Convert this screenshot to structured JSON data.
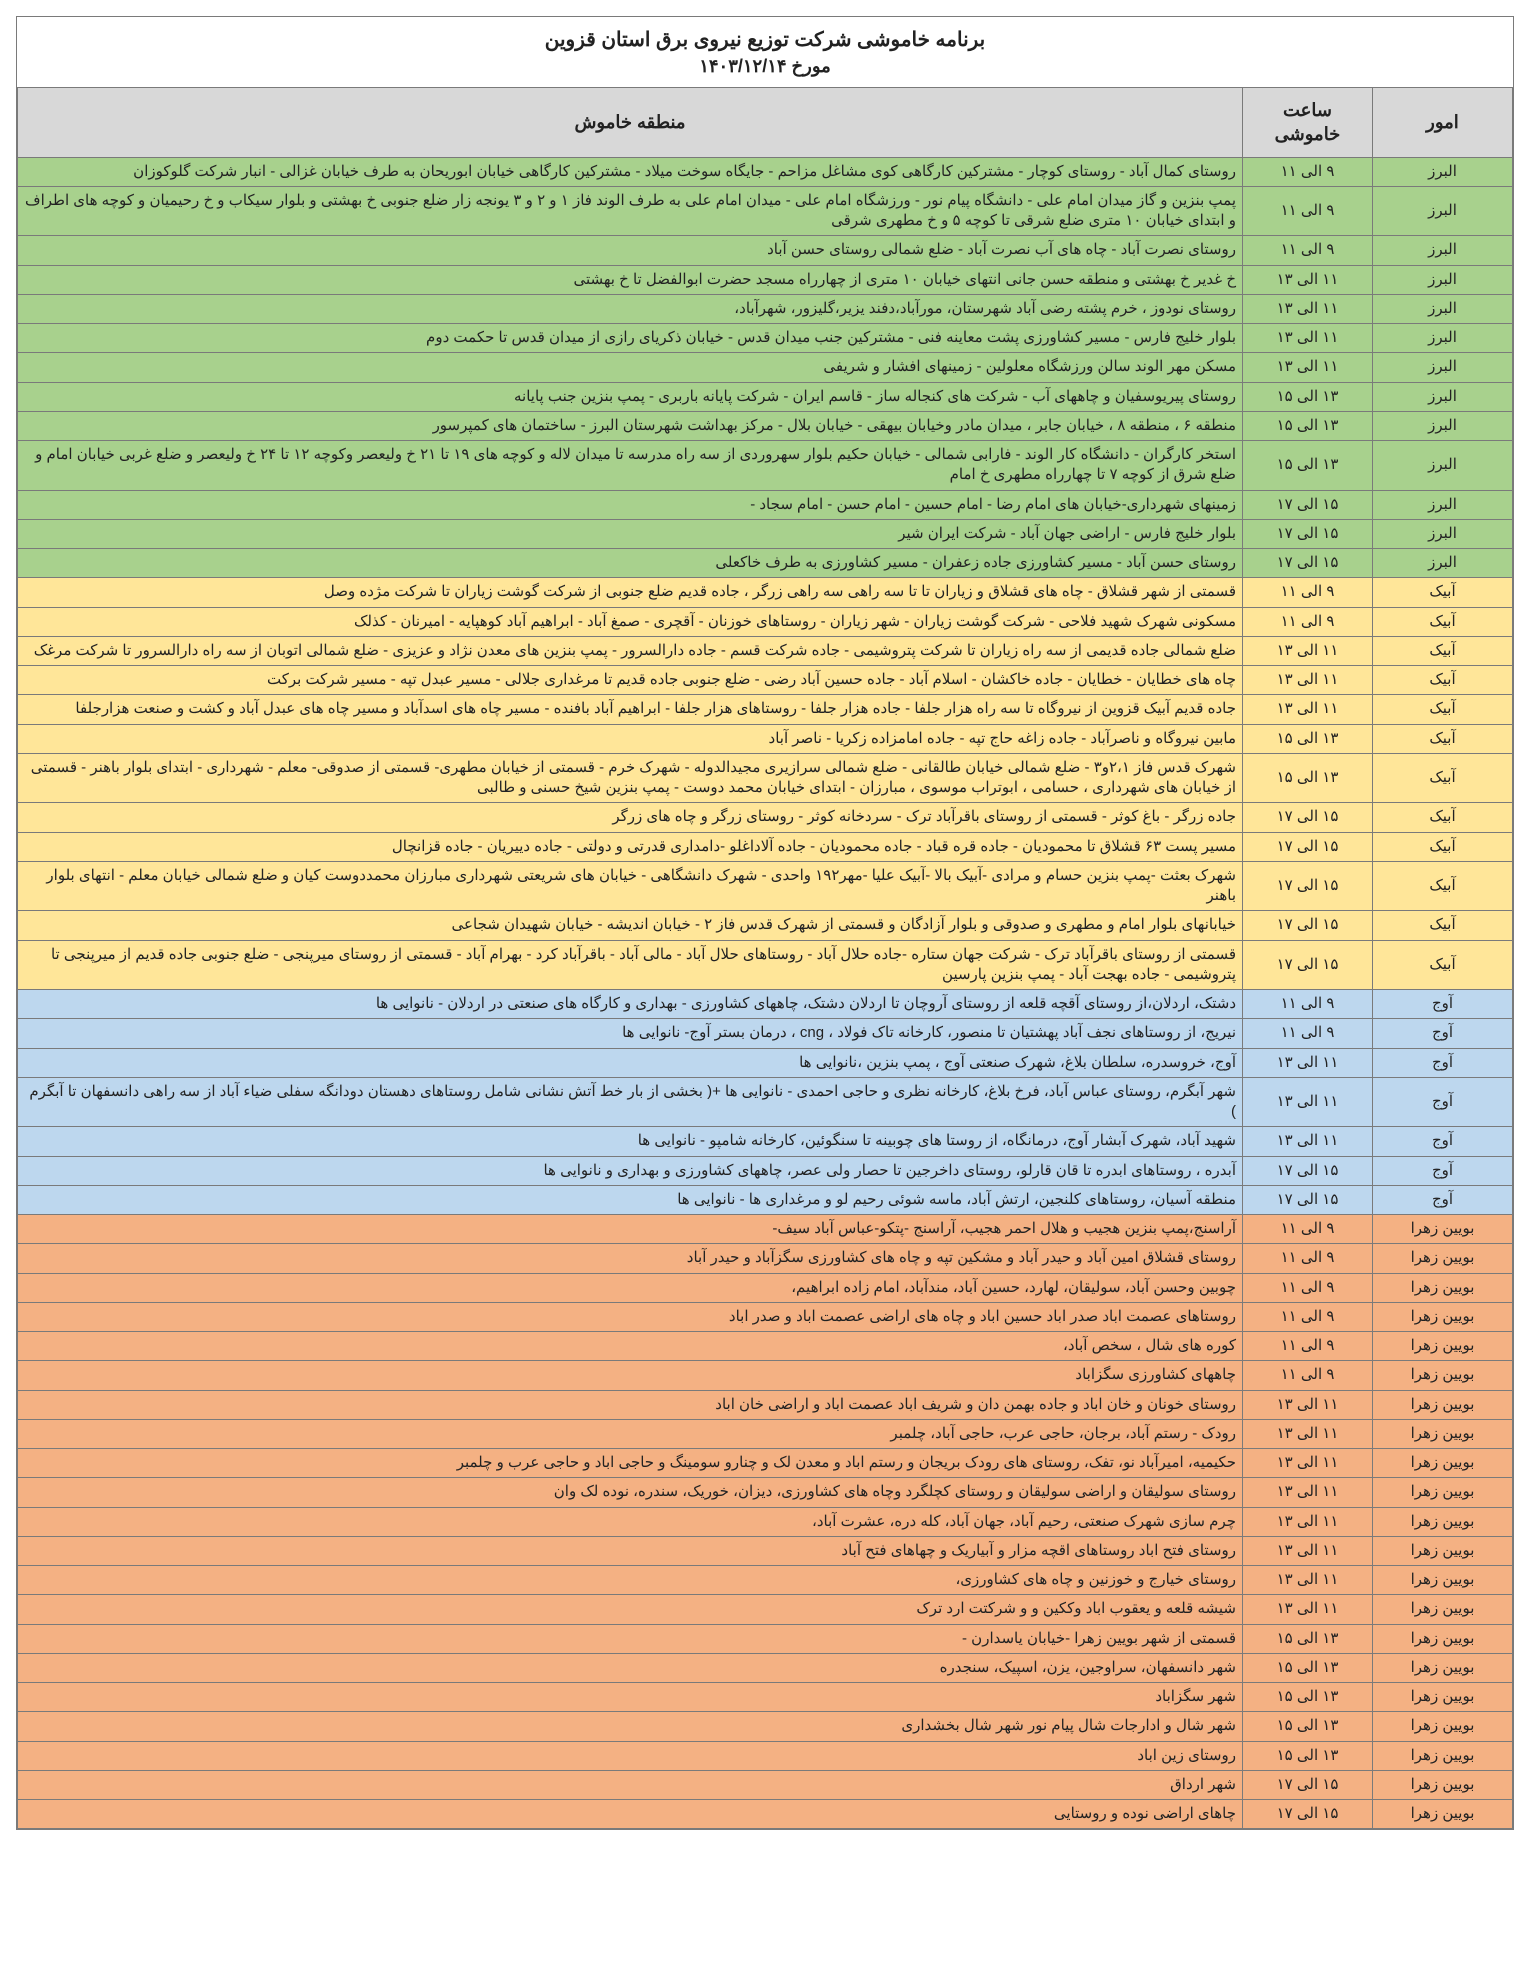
{
  "title": "برنامه خاموشی شرکت توزیع نیروی برق استان قزوین",
  "date_line": "مورخ ۱۴۰۳/۱۲/۱۴",
  "headers": {
    "region": "امور",
    "hours": "ساعت خاموشی",
    "area": "منطقه خاموش"
  },
  "colors": {
    "header_bg": "#d8d8d8",
    "groups": {
      "alborz": "#a8d18d",
      "abyek": "#ffe699",
      "avaj": "#bdd7ee",
      "buin": "#f4b183"
    }
  },
  "rows": [
    {
      "g": "alborz",
      "region": "البرز",
      "hours": "۹ الی ۱۱",
      "area": "روستای کمال آباد - روستای کوچار - مشترکین کارگاهی کوی مشاغل مزاحم - جایگاه سوخت میلاد - مشترکین کارگاهی خیابان ابوریحان به طرف خیابان غزالی - انبار شرکت گلوکوزان"
    },
    {
      "g": "alborz",
      "region": "البرز",
      "hours": "۹ الی ۱۱",
      "area": "پمپ بنزین و گاز میدان امام علی - دانشگاه پیام نور - ورزشگاه امام علی - میدان امام علی به طرف الوند فاز ۱ و ۲ و ۳ یونجه زار ضلع جنوبی خ بهشتی و بلوار سیکاب و خ رحیمیان و کوچه های اطراف و ابتدای خیابان ۱۰ متری ضلع شرقی تا کوچه ۵ و خ مطهری شرقی"
    },
    {
      "g": "alborz",
      "region": "البرز",
      "hours": "۹ الی ۱۱",
      "area": "روستای نصرت آباد - چاه های آب نصرت آباد - ضلع شمالی روستای حسن آباد"
    },
    {
      "g": "alborz",
      "region": "البرز",
      "hours": "۱۱ الی ۱۳",
      "area": "خ غدیر خ بهشتی و منطقه حسن جانی انتهای خیابان ۱۰ متری از چهارراه مسجد حضرت ابوالفضل تا خ بهشتی"
    },
    {
      "g": "alborz",
      "region": "البرز",
      "hours": "۱۱ الی ۱۳",
      "area": "روستای نودوز ، خرم پشته رضی آباد شهرستان، مورآباد،دفند یزیر،گلیزور، شهرآباد،"
    },
    {
      "g": "alborz",
      "region": "البرز",
      "hours": "۱۱ الی ۱۳",
      "area": "بلوار خلیج فارس - مسیر کشاورزی پشت معاینه فنی - مشترکین جنب میدان قدس -  خیابان ذکریای رازی از میدان قدس تا حکمت دوم"
    },
    {
      "g": "alborz",
      "region": "البرز",
      "hours": "۱۱ الی ۱۳",
      "area": "مسکن مهر الوند سالن ورزشگاه معلولین -  زمینهای افشار و شریفی"
    },
    {
      "g": "alborz",
      "region": "البرز",
      "hours": "۱۳ الی ۱۵",
      "area": "روستای پیریوسفیان و چاههای آب - شرکت های کنجاله ساز - قاسم ایران - شرکت پایانه باربری - پمپ بنزین جنب پایانه"
    },
    {
      "g": "alborz",
      "region": "البرز",
      "hours": "۱۳ الی ۱۵",
      "area": "منطقه ۶ ، منطقه ۸ ، خیابان جابر ، میدان مادر وخیابان بیهقی - خیابان بلال - مرکز بهداشت شهرستان البرز - ساختمان های کمپرسور"
    },
    {
      "g": "alborz",
      "region": "البرز",
      "hours": "۱۳ الی ۱۵",
      "area": "استخر کارگران - دانشگاه کار الوند - فارابی شمالی -  خیابان حکیم بلوار سهروردی از سه راه مدرسه تا میدان لاله و کوچه های ۱۹ تا ۲۱ خ ولیعصر وکوچه ۱۲ تا ۲۴ خ ولیعصر و ضلع غربی خیابان امام و ضلع شرق از کوچه ۷ تا چهارراه مطهری خ امام"
    },
    {
      "g": "alborz",
      "region": "البرز",
      "hours": "۱۵ الی ۱۷",
      "area": "زمینهای شهرداری-خیابان های امام رضا - امام حسین - امام حسن - امام سجاد -"
    },
    {
      "g": "alborz",
      "region": "البرز",
      "hours": "۱۵ الی ۱۷",
      "area": "بلوار خلیج فارس - اراضی جهان آباد -  شرکت ایران شیر"
    },
    {
      "g": "alborz",
      "region": "البرز",
      "hours": "۱۵ الی ۱۷",
      "area": "روستای حسن آباد -  مسیر کشاورزی جاده زعفران -  مسیر کشاورزی به طرف خاکعلی"
    },
    {
      "g": "abyek",
      "region": "آبیک",
      "hours": "۹ الی ۱۱",
      "area": "قسمتی از شهر قشلاق - چاه های قشلاق و زیاران تا تا سه راهی سه راهی زرگر ، جاده قدیم ضلع جنوبی از شرکت گوشت زیاران تا شرکت مژده وصل"
    },
    {
      "g": "abyek",
      "region": "آبیک",
      "hours": "۹ الی ۱۱",
      "area": "مسکونی شهرک شهید فلاحی - شرکت گوشت زیاران - شهر زیاران - روستاهای خوزنان - آقچری - صمغ آباد - ابراهیم آباد کوهپایه - امیرنان  - کذلک"
    },
    {
      "g": "abyek",
      "region": "آبیک",
      "hours": "۱۱ الی ۱۳",
      "area": "ضلع شمالی جاده قدیمی از سه راه زیاران تا شرکت پتروشیمی - جاده شرکت قسم - جاده دارالسرور - پمپ بنزین های معدن نژاد و عزیزی - ضلع شمالی اتوبان از سه راه دارالسرور تا شرکت مرغک"
    },
    {
      "g": "abyek",
      "region": "آبیک",
      "hours": "۱۱ الی ۱۳",
      "area": "چاه های خطایان - خطایان - جاده خاکشان - اسلام آباد - جاده حسین آباد رضی - ضلع جنوبی جاده قدیم تا مرغداری جلالی - مسیر عبدل تپه - مسیر شرکت برکت"
    },
    {
      "g": "abyek",
      "region": "آبیک",
      "hours": "۱۱ الی ۱۳",
      "area": "جاده قدیم آبیک قزوین از نیروگاه تا سه راه هزار جلفا - جاده هزار جلفا - روستاهای هزار جلفا - ابراهیم آباد بافنده - مسیر چاه های اسدآباد و مسیر چاه های عبدل آباد و کشت و صنعت هزارجلفا"
    },
    {
      "g": "abyek",
      "region": "آبیک",
      "hours": "۱۳ الی ۱۵",
      "area": "مابین نیروگاه و ناصرآباد - جاده زاغه حاج تپه - جاده امامزاده زکریا - ناصر آباد"
    },
    {
      "g": "abyek",
      "region": "آبیک",
      "hours": "۱۳ الی ۱۵",
      "area": "شهرک قدس فاز ۲،۱و۳ - ضلع شمالی خیابان طالقانی - ضلع شمالی سرازیری مجیدالدوله - شهرک خرم - قسمتی از خیابان مطهری- قسمتی از صدوقی- معلم - شهرداری - ابتدای بلوار باهنر - قسمتی از خیابان های شهرداری ، حسامی ، ابوتراب موسوی ، مبارزان - ابتدای خیابان محمد دوست - پمپ بنزین شیخ حسنی و طالبی"
    },
    {
      "g": "abyek",
      "region": "آبیک",
      "hours": "۱۵ الی ۱۷",
      "area": "جاده زرگر - باغ کوثر - قسمتی از روستای باقرآباد ترک - سردخانه کوثر -  روستای زرگر و چاه های زرگر"
    },
    {
      "g": "abyek",
      "region": "آبیک",
      "hours": "۱۵ الی ۱۷",
      "area": "مسیر پست ۶۳ قشلاق تا محمودیان - جاده قره قباد - جاده محمودیان - جاده آلاداغلو -دامداری قدرتی و دولتی - جاده دییریان - جاده قزانچال"
    },
    {
      "g": "abyek",
      "region": "آبیک",
      "hours": "۱۵ الی ۱۷",
      "area": "شهرک بعثت -پمپ بنزین حسام و مرادی -آبیک بالا -آبیک علیا -مهر۱۹۲ واحدی - شهرک دانشگاهی -  خیابان های شریعتی شهرداری مبارزان محمددوست کیان و ضلع شمالی خیابان معلم -  انتهای بلوار باهنر"
    },
    {
      "g": "abyek",
      "region": "آبیک",
      "hours": "۱۵ الی ۱۷",
      "area": "خیابانهای بلوار امام و مطهری و صدوقی و بلوار آزادگان و قسمتی از شهرک قدس فاز ۲ - خیابان اندیشه - خیابان شهیدان شجاعی"
    },
    {
      "g": "abyek",
      "region": "آبیک",
      "hours": "۱۵ الی ۱۷",
      "area": "قسمتی از روستای باقرآباد ترک - شرکت جهان ستاره -جاده حلال آباد - روستاهای حلال آباد - مالی آباد - باقرآباد کرد - بهرام آباد - قسمتی از روستای میرپنجی - ضلع جنوبی جاده قدیم از میرپنجی تا پتروشیمی - جاده بهجت آباد - پمپ بنزین پارسین"
    },
    {
      "g": "avaj",
      "region": "آوج",
      "hours": "۹ الی ۱۱",
      "area": "دشتک، اردلان،از روستای آقچه قلعه از روستای آروچان تا اردلان دشتک، چاههای کشاورزی - بهداری و کارگاه های صنعتی در اردلان - نانوایی ها"
    },
    {
      "g": "avaj",
      "region": "آوج",
      "hours": "۹ الی ۱۱",
      "area": "نیریج، از روستاهای نجف آباد پهشتیان تا منصور، کارخانه تاک فولاد ، cng ،  درمان بستر آوج- نانوایی ها"
    },
    {
      "g": "avaj",
      "region": "آوج",
      "hours": "۱۱ الی ۱۳",
      "area": "آوج، خروسدره، سلطان بلاغ، شهرک صنعتی آوج ، پمپ بنزین ،نانوایی ها"
    },
    {
      "g": "avaj",
      "region": "آوج",
      "hours": "۱۱ الی ۱۳",
      "area": "شهر آبگرم، روستای عباس آباد، فرخ بلاغ، کارخانه نظری و حاجی احمدی - نانوایی ها +( بخشی از بار خط آتش نشانی شامل روستاهای دهستان دودانگه سفلی ضیاء آباد از سه راهی دانسفهان تا آبگرم )"
    },
    {
      "g": "avaj",
      "region": "آوج",
      "hours": "۱۱ الی ۱۳",
      "area": "شهید آباد، شهرک آبشار آوج،  درمانگاه، از روستا های چوبینه تا سنگوئین، کارخانه شامپو - نانوایی ها"
    },
    {
      "g": "avaj",
      "region": "آوج",
      "hours": "۱۵ الی ۱۷",
      "area": "آبدره ، روستاهای ابدره تا قان قارلو، روستای داخرجین تا حصار ولی عصر، چاههای کشاورزی و بهداری و نانوایی ها"
    },
    {
      "g": "avaj",
      "region": "آوج",
      "hours": "۱۵ الی ۱۷",
      "area": "منطقه آسیان، روستاهای کلنجین، ارتش آباد، ماسه شوئی رحیم لو و مرغداری ها  - نانوایی ها"
    },
    {
      "g": "buin",
      "region": "بویین زهرا",
      "hours": "۹ الی ۱۱",
      "area": "آراسنج،پمپ بنزین هجیب و هلال احمر هجیب، آراسنج -پتکو-عباس آباد سیف-"
    },
    {
      "g": "buin",
      "region": "بویین زهرا",
      "hours": "۹ الی ۱۱",
      "area": "روستای قشلاق امین آباد و حیدر آباد و مشکین تپه و چاه های کشاورزی سگزآباد و حیدر آباد"
    },
    {
      "g": "buin",
      "region": "بویین زهرا",
      "hours": "۹ الی ۱۱",
      "area": "چوبین وحسن آباد، سولیقان، لهارد، حسین آباد، مندآباد، امام زاده ابراهیم،"
    },
    {
      "g": "buin",
      "region": "بویین زهرا",
      "hours": "۹ الی ۱۱",
      "area": "روستاهای عصمت اباد صدر اباد حسین اباد و چاه های اراضی عصمت اباد و صدر اباد"
    },
    {
      "g": "buin",
      "region": "بویین زهرا",
      "hours": "۹ الی ۱۱",
      "area": "کوره های شال ، سخص آباد،"
    },
    {
      "g": "buin",
      "region": "بویین زهرا",
      "hours": "۹ الی ۱۱",
      "area": "چاههای کشاورزی سگزاباد"
    },
    {
      "g": "buin",
      "region": "بویین زهرا",
      "hours": "۱۱ الی ۱۳",
      "area": "روستای خونان و خان اباد و جاده بهمن دان و شریف اباد عصمت اباد و اراضی خان اباد"
    },
    {
      "g": "buin",
      "region": "بویین زهرا",
      "hours": "۱۱ الی ۱۳",
      "area": "رودک - رستم آباد، برجان، حاجی عرب، حاجی آباد، چلمبر"
    },
    {
      "g": "buin",
      "region": "بویین زهرا",
      "hours": "۱۱ الی ۱۳",
      "area": "حکیمیه، امیرآباد نو، تفک، روستای های رودک بریجان و رستم اباد و معدن لک و چنارو سومینگ و حاجی اباد و حاجی عرب و چلمبر"
    },
    {
      "g": "buin",
      "region": "بویین زهرا",
      "hours": "۱۱ الی ۱۳",
      "area": "روستای سولیقان و اراضی سولیقان و روستای کچلگرد وچاه های کشاورزی، دیزان، خوریک، سندره، نوده لک وان"
    },
    {
      "g": "buin",
      "region": "بویین زهرا",
      "hours": "۱۱ الی ۱۳",
      "area": "چرم سازی شهرک صنعتی، رحیم آباد، جهان آباد، کله دره، عشرت آباد،"
    },
    {
      "g": "buin",
      "region": "بویین زهرا",
      "hours": "۱۱ الی ۱۳",
      "area": "روستای فتح اباد روستاهای اقچه مزار و آبیاریک و چهاهای فتح آباد"
    },
    {
      "g": "buin",
      "region": "بویین زهرا",
      "hours": "۱۱ الی ۱۳",
      "area": "روستای خیارج و خوزنین و چاه های کشاورزی،"
    },
    {
      "g": "buin",
      "region": "بویین زهرا",
      "hours": "۱۱ الی ۱۳",
      "area": "شیشه قلعه و یعقوب اباد وککین و و شرکتت ارد ترک"
    },
    {
      "g": "buin",
      "region": "بویین زهرا",
      "hours": "۱۳ الی ۱۵",
      "area": "قسمتی از شهر بویین زهرا -خیابان یاسدارن -"
    },
    {
      "g": "buin",
      "region": "بویین زهرا",
      "hours": "۱۳ الی ۱۵",
      "area": "شهر دانسفهان، سراوجین، یزن، اسپیک، سنجدره"
    },
    {
      "g": "buin",
      "region": "بویین زهرا",
      "hours": "۱۳ الی ۱۵",
      "area": "شهر سگزاباد"
    },
    {
      "g": "buin",
      "region": "بویین زهرا",
      "hours": "۱۳ الی ۱۵",
      "area": "شهر شال و ادارجات شال پیام نور شهر شال بخشداری"
    },
    {
      "g": "buin",
      "region": "بویین زهرا",
      "hours": "۱۳ الی ۱۵",
      "area": "روستای زین اباد"
    },
    {
      "g": "buin",
      "region": "بویین زهرا",
      "hours": "۱۵ الی ۱۷",
      "area": "شهر ارداق"
    },
    {
      "g": "buin",
      "region": "بویین زهرا",
      "hours": "۱۵ الی ۱۷",
      "area": "چاهای اراضی نوده و روستایی"
    }
  ]
}
